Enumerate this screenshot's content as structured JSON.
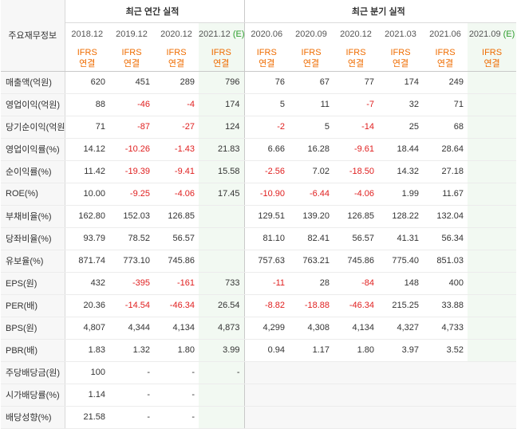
{
  "header": {
    "corner": "주요재무정보",
    "annual_title": "최근 연간 실적",
    "quarter_title": "최근 분기 실적",
    "periods": [
      {
        "label": "2018.12",
        "est": ""
      },
      {
        "label": "2019.12",
        "est": ""
      },
      {
        "label": "2020.12",
        "est": ""
      },
      {
        "label": "2021.12",
        "est": "(E)"
      },
      {
        "label": "2020.06",
        "est": ""
      },
      {
        "label": "2020.09",
        "est": ""
      },
      {
        "label": "2020.12",
        "est": ""
      },
      {
        "label": "2021.03",
        "est": ""
      },
      {
        "label": "2021.06",
        "est": ""
      },
      {
        "label": "2021.09",
        "est": "(E)"
      }
    ],
    "ifrs_line1": "IFRS",
    "ifrs_line2": "연결"
  },
  "rows": [
    {
      "label": "매출액(억원)",
      "values": [
        "620",
        "451",
        "289",
        "796",
        "76",
        "67",
        "77",
        "174",
        "249",
        ""
      ]
    },
    {
      "label": "영업이익(억원)",
      "values": [
        "88",
        "-46",
        "-4",
        "174",
        "5",
        "11",
        "-7",
        "32",
        "71",
        ""
      ]
    },
    {
      "label": "당기순이익(억원)",
      "values": [
        "71",
        "-87",
        "-27",
        "124",
        "-2",
        "5",
        "-14",
        "25",
        "68",
        ""
      ]
    },
    {
      "label": "영업이익률(%)",
      "values": [
        "14.12",
        "-10.26",
        "-1.43",
        "21.83",
        "6.66",
        "16.28",
        "-9.61",
        "18.44",
        "28.64",
        ""
      ]
    },
    {
      "label": "순이익률(%)",
      "values": [
        "11.42",
        "-19.39",
        "-9.41",
        "15.58",
        "-2.56",
        "7.02",
        "-18.50",
        "14.32",
        "27.18",
        ""
      ]
    },
    {
      "label": "ROE(%)",
      "values": [
        "10.00",
        "-9.25",
        "-4.06",
        "17.45",
        "-10.90",
        "-6.44",
        "-4.06",
        "1.99",
        "11.67",
        ""
      ]
    },
    {
      "label": "부채비율(%)",
      "values": [
        "162.80",
        "152.03",
        "126.85",
        "",
        "129.51",
        "139.20",
        "126.85",
        "128.22",
        "132.04",
        ""
      ]
    },
    {
      "label": "당좌비율(%)",
      "values": [
        "93.79",
        "78.52",
        "56.57",
        "",
        "81.10",
        "82.41",
        "56.57",
        "41.31",
        "56.34",
        ""
      ]
    },
    {
      "label": "유보율(%)",
      "values": [
        "871.74",
        "773.10",
        "745.86",
        "",
        "757.63",
        "763.21",
        "745.86",
        "775.40",
        "851.03",
        ""
      ]
    },
    {
      "label": "EPS(원)",
      "values": [
        "432",
        "-395",
        "-161",
        "733",
        "-11",
        "28",
        "-84",
        "148",
        "400",
        ""
      ]
    },
    {
      "label": "PER(배)",
      "values": [
        "20.36",
        "-14.54",
        "-46.34",
        "26.54",
        "-8.82",
        "-18.88",
        "-46.34",
        "215.25",
        "33.88",
        ""
      ]
    },
    {
      "label": "BPS(원)",
      "values": [
        "4,807",
        "4,344",
        "4,134",
        "4,873",
        "4,299",
        "4,308",
        "4,134",
        "4,327",
        "4,733",
        ""
      ]
    },
    {
      "label": "PBR(배)",
      "values": [
        "1.83",
        "1.32",
        "1.80",
        "3.99",
        "0.94",
        "1.17",
        "1.80",
        "3.97",
        "3.52",
        ""
      ]
    },
    {
      "label": "주당배당금(원)",
      "values": [
        "100",
        "-",
        "-",
        "-",
        "",
        "",
        "",
        "",
        "",
        ""
      ]
    },
    {
      "label": "시가배당률(%)",
      "values": [
        "1.14",
        "-",
        "-",
        "",
        "",
        "",
        "",
        "",
        "",
        ""
      ]
    },
    {
      "label": "배당성향(%)",
      "values": [
        "21.58",
        "-",
        "-",
        "",
        "",
        "",
        "",
        "",
        "",
        ""
      ]
    }
  ]
}
